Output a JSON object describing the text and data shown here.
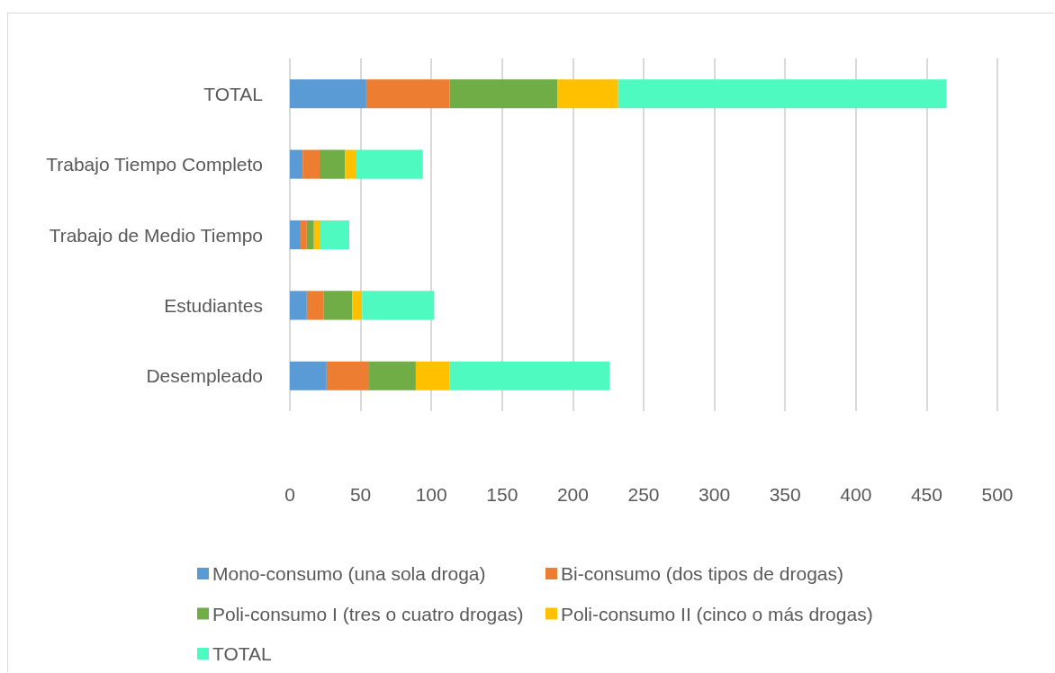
{
  "chart_data": {
    "type": "bar",
    "orientation": "horizontal",
    "stacked": true,
    "categories": [
      "TOTAL",
      "Trabajo Tiempo Completo",
      "Trabajo de Medio Tiempo",
      "Estudiantes",
      "Desempleado"
    ],
    "series": [
      {
        "name": "Mono-consumo (una sola droga)",
        "color": "#5b9bd5",
        "values": [
          54,
          9,
          7,
          12,
          26
        ]
      },
      {
        "name": "Bi-consumo (dos tipos de drogas)",
        "color": "#ed7d31",
        "values": [
          59,
          12,
          5,
          12,
          30
        ]
      },
      {
        "name": "Poli-consumo I (tres o cuatro drogas)",
        "color": "#70ad47",
        "values": [
          76,
          18,
          5,
          20,
          33
        ]
      },
      {
        "name": "Poli-consumo II (cinco o más drogas)",
        "color": "#ffc000",
        "values": [
          43,
          8,
          4,
          7,
          24
        ]
      },
      {
        "name": "TOTAL",
        "color": "#4ffac0",
        "values": [
          232,
          47,
          21,
          51,
          113
        ]
      }
    ],
    "xlim": [
      0,
      500
    ],
    "xticks": [
      0,
      50,
      100,
      150,
      200,
      250,
      300,
      350,
      400,
      450,
      500
    ],
    "grid": "x",
    "legend": "bottom"
  }
}
